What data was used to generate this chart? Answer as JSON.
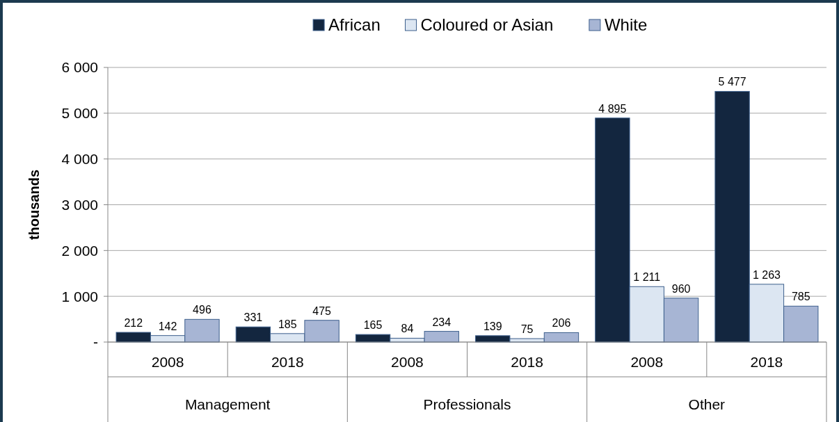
{
  "chart_data": {
    "type": "bar",
    "ylabel": "thousands",
    "categories": [
      "2008",
      "2018",
      "2008",
      "2018",
      "2008",
      "2018"
    ],
    "annotations": [
      "Management",
      "Professionals",
      "Other"
    ],
    "series": [
      {
        "name": "African",
        "color": "#13263f",
        "values": [
          212,
          331,
          165,
          139,
          4895,
          5477
        ],
        "value_labels": [
          "212",
          "331",
          "165",
          "139",
          "4 895",
          "5 477"
        ]
      },
      {
        "name": "Coloured or Asian",
        "color": "#dce6f2",
        "values": [
          142,
          185,
          84,
          75,
          1211,
          1263
        ],
        "value_labels": [
          "142",
          "185",
          "84",
          "75",
          "1 211",
          "1 263"
        ]
      },
      {
        "name": "White",
        "color": "#a7b5d4",
        "values": [
          496,
          475,
          234,
          206,
          960,
          785
        ],
        "value_labels": [
          "496",
          "475",
          "234",
          "206",
          "960",
          "785"
        ]
      }
    ],
    "ylim": [
      0,
      6000
    ],
    "yticks": [
      {
        "value": 0,
        "label": "-"
      },
      {
        "value": 1000,
        "label": "1 000"
      },
      {
        "value": 2000,
        "label": "2 000"
      },
      {
        "value": 3000,
        "label": "3 000"
      },
      {
        "value": 4000,
        "label": "4 000"
      },
      {
        "value": 5000,
        "label": "5 000"
      },
      {
        "value": 6000,
        "label": "6 000"
      }
    ],
    "grid": "y",
    "legend": "top"
  }
}
